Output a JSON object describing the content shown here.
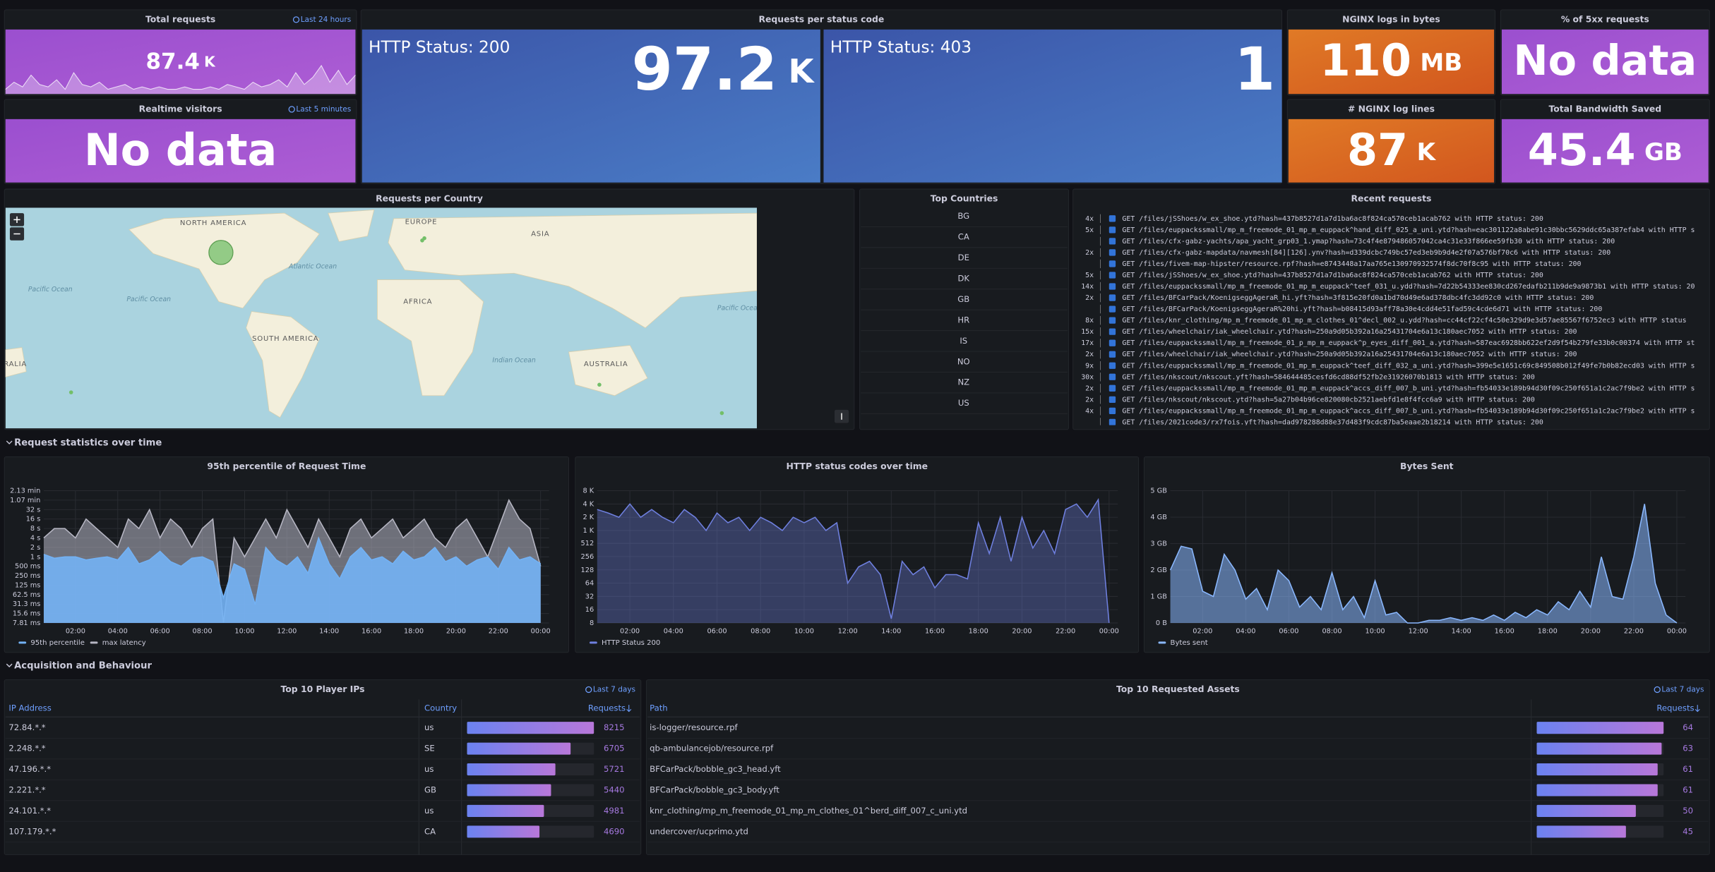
{
  "stats": [
    {
      "title": "Total requests",
      "value": 87.4,
      "unit": "K",
      "badge": "Last 24 hours",
      "sparkline": [
        2,
        5,
        3,
        8,
        4,
        3,
        6,
        2,
        9,
        4,
        3,
        5,
        2,
        3,
        4,
        2,
        3,
        2,
        3,
        2,
        2,
        3,
        2,
        2,
        3,
        2,
        4,
        3,
        2,
        5,
        3,
        4,
        6,
        3,
        9,
        4,
        7,
        12,
        5,
        10,
        4,
        8
      ]
    },
    {
      "title": "Realtime visitors",
      "value": "No data",
      "badge": "Last 5 minutes"
    },
    {
      "title": "NGINX logs in bytes",
      "value": 110,
      "unit": "MB"
    },
    {
      "title": "% of 5xx requests",
      "value": "No data"
    },
    {
      "title": "# NGINX log lines",
      "value": 87,
      "unit": "K"
    },
    {
      "title": "Total Bandwidth Saved",
      "value": 45.4,
      "unit": "GB"
    }
  ],
  "status_panel": {
    "title": "Requests per status code",
    "tiles": [
      {
        "label": "HTTP Status: 200",
        "value": 97.2,
        "unit": "K"
      },
      {
        "label": "HTTP Status: 403",
        "value": 1
      }
    ]
  },
  "map_panel": {
    "title": "Requests per Country",
    "labels": [
      "NORTH AMERICA",
      "EUROPE",
      "ASIA",
      "AFRICA",
      "SOUTH AMERICA",
      "AUSTRALIA",
      "Pacific Ocean",
      "Pacific Ocean",
      "Atlantic Ocean",
      "Indian Ocean",
      "Pacific Ocean",
      "RALIA"
    ]
  },
  "top_countries": {
    "title": "Top Countries",
    "items": [
      "BG",
      "CA",
      "DE",
      "DK",
      "GB",
      "HR",
      "IS",
      "NO",
      "NZ",
      "US"
    ]
  },
  "recent_requests": {
    "title": "Recent requests",
    "lines": [
      {
        "count": "4x",
        "text": "GET /files/jSShoes/w_ex_shoe.ytd?hash=437b8527d1a7d1ba6ac8f824ca570ceb1acab762 with HTTP status: 200"
      },
      {
        "count": "5x",
        "text": "GET /files/euppackssmall/mp_m_freemode_01_mp_m_euppack^hand_diff_025_a_uni.ytd?hash=eac301122a8abe91c30bbc5629ddc65a387efab4 with HTTP s"
      },
      {
        "count": null,
        "text": "GET /files/cfx-gabz-yachts/apa_yacht_grp03_1.ymap?hash=73c4f4e879486057042ca4c31e33f866ee59fb30 with HTTP status: 200"
      },
      {
        "count": "2x",
        "text": "GET /files/cfx-gabz-mapdata/navmesh[84][126].ynv?hash=d339dcbc749bc57ed3eb9b9d4e2f07a576bf70c6 with HTTP status: 200"
      },
      {
        "count": null,
        "text": "GET /files/fivem-map-hipster/resource.rpf?hash=e8743448a17aa765e130970932574f8dc70f8c95 with HTTP status: 200"
      },
      {
        "count": "5x",
        "text": "GET /files/jSShoes/w_ex_shoe.ytd?hash=437b8527d1a7d1ba6ac8f824ca570ceb1acab762 with HTTP status: 200"
      },
      {
        "count": "14x",
        "text": "GET /files/euppackssmall/mp_m_freemode_01_mp_m_euppack^teef_031_u.ydd?hash=7d22b54333ee830cd267edafb211b9de9a9873b1 with HTTP status: 20"
      },
      {
        "count": "2x",
        "text": "GET /files/BFCarPack/KoenigseggAgeraR_hi.yft?hash=3f815e20fd0a1bd70d49e6ad378dbc4fc3dd92c0 with HTTP status: 200"
      },
      {
        "count": null,
        "text": "GET /files/BFCarPack/KoenigseggAgeraR%20hi.yft?hash=b08415d93aff78a30e4cdd4e51fad59c4cde6d71 with HTTP status: 200"
      },
      {
        "count": "8x",
        "text": "GET /files/knr_clothing/mp_m_freemode_01_mp_m_clothes_01^decl_002_u.ydd?hash=cc44cf22cf4c50e329d9e3d57ae85567f6752ec3 with HTTP status"
      },
      {
        "count": "15x",
        "text": "GET /files/wheelchair/iak_wheelchair.ytd?hash=250a9d05b392a16a25431704e6a13c180aec7052 with HTTP status: 200"
      },
      {
        "count": "17x",
        "text": "GET /files/euppackssmall/mp_m_freemode_01_p_mp_m_euppack^p_eyes_diff_001_a.ytd?hash=587eac6928bb622ef2d9f54b279fe33b0c00374 with HTTP st"
      },
      {
        "count": "2x",
        "text": "GET /files/wheelchair/iak_wheelchair.ytd?hash=250a9d05b392a16a25431704e6a13c180aec7052 with HTTP status: 200"
      },
      {
        "count": "9x",
        "text": "GET /files/euppackssmall/mp_m_freemode_01_mp_m_euppack^teef_diff_032_a_uni.ytd?hash=399e5e1651c69c849508b012f49fe7b0b82ecd03 with HTTP s"
      },
      {
        "count": "30x",
        "text": "GET /files/nkscout/nkscout.yft?hash=584644485cesfd6cd88df52fb2e31926070b1813 with HTTP status: 200"
      },
      {
        "count": "2x",
        "text": "GET /files/euppackssmall/mp_m_freemode_01_mp_m_euppack^accs_diff_007_b_uni.ytd?hash=fb54033e189b94d30f09c250f651a1c2ac7f9be2 with HTTP s"
      },
      {
        "count": "2x",
        "text": "GET /files/nkscout/nkscout.ytd?hash=5a27b04b96ce820080cb2521aebfd1e8f4fcc6a9 with HTTP status: 200"
      },
      {
        "count": "4x",
        "text": "GET /files/euppackssmall/mp_m_freemode_01_mp_m_euppack^accs_diff_007_b_uni.ytd?hash=fb54033e189b94d30f09c250f651a1c2ac7f9be2 with HTTP s"
      },
      {
        "count": null,
        "text": "GET /files/2021code3/rx7fois.yft?hash=dad978288d88e37d483f9cdc87ba5eaae2b18214 with HTTP status: 200"
      }
    ]
  },
  "rows": [
    "Request statistics over time",
    "Acquisition and Behaviour"
  ],
  "chart_data": [
    {
      "type": "area",
      "title": "95th percentile of Request Time",
      "log_y": true,
      "grid": true,
      "x": [
        0.5,
        1,
        1.5,
        2,
        2.5,
        3,
        3.5,
        4,
        4.5,
        5,
        5.5,
        6,
        6.5,
        7,
        7.5,
        8,
        8.5,
        9,
        9.5,
        10,
        10.5,
        11,
        11.5,
        12,
        12.5,
        13,
        13.5,
        14,
        14.5,
        15,
        15.5,
        16,
        16.5,
        17,
        17.5,
        18,
        18.5,
        19,
        19.5,
        20,
        20.5,
        21,
        21.5,
        22,
        22.5,
        23,
        23.5,
        24
      ],
      "xlim": [
        0.5,
        24.4
      ],
      "xticks": [
        {
          "value": 2,
          "label": "02:00"
        },
        {
          "value": 4,
          "label": "04:00"
        },
        {
          "value": 6,
          "label": "06:00"
        },
        {
          "value": 8,
          "label": "08:00"
        },
        {
          "value": 10,
          "label": "10:00"
        },
        {
          "value": 12,
          "label": "12:00"
        },
        {
          "value": 14,
          "label": "14:00"
        },
        {
          "value": 16,
          "label": "16:00"
        },
        {
          "value": 18,
          "label": "18:00"
        },
        {
          "value": 20,
          "label": "20:00"
        },
        {
          "value": 22,
          "label": "22:00"
        },
        {
          "value": 24,
          "label": "00:00"
        }
      ],
      "ylim": [
        0.00781,
        128
      ],
      "yticks": [
        {
          "value": 0.00781,
          "label": "7.81 ms"
        },
        {
          "value": 0.0156,
          "label": "15.6 ms"
        },
        {
          "value": 0.0313,
          "label": "31.3 ms"
        },
        {
          "value": 0.0625,
          "label": "62.5 ms"
        },
        {
          "value": 0.125,
          "label": "125 ms"
        },
        {
          "value": 0.25,
          "label": "250 ms"
        },
        {
          "value": 0.5,
          "label": "500 ms"
        },
        {
          "value": 1,
          "label": "1 s"
        },
        {
          "value": 2,
          "label": "2 s"
        },
        {
          "value": 4,
          "label": "4 s"
        },
        {
          "value": 8,
          "label": "8 s"
        },
        {
          "value": 16,
          "label": "16 s"
        },
        {
          "value": 32,
          "label": "32 s"
        },
        {
          "value": 64,
          "label": "1.07 min"
        },
        {
          "value": 128,
          "label": "2.13 min"
        }
      ],
      "series": [
        {
          "name": "95th percentile",
          "color": "#73b2f5",
          "values": [
            1.2,
            0.9,
            1,
            1,
            0.8,
            0.9,
            1,
            0.8,
            2,
            0.6,
            0.8,
            1.5,
            0.7,
            0.5,
            0.9,
            1,
            0.7,
            0.05,
            0.6,
            0.4,
            0.03,
            2,
            0.8,
            0.5,
            1,
            0.3,
            4,
            0.6,
            0.2,
            1,
            2,
            0.8,
            1,
            0.6,
            1.5,
            0.8,
            1,
            2,
            0.7,
            1,
            0.5,
            0.8,
            1,
            0.4,
            2,
            0.8,
            1,
            0.6
          ]
        },
        {
          "name": "max latency",
          "color": "#b7b7c4",
          "values": [
            4,
            8,
            8,
            4,
            16,
            8,
            4,
            2,
            16,
            8,
            32,
            4,
            16,
            8,
            2,
            8,
            16,
            0.008,
            4,
            1,
            4,
            16,
            4,
            32,
            8,
            2,
            16,
            4,
            1,
            8,
            16,
            4,
            8,
            16,
            4,
            8,
            16,
            4,
            2,
            8,
            16,
            4,
            1,
            8,
            64,
            16,
            8,
            0.5
          ]
        }
      ]
    },
    {
      "type": "area",
      "title": "HTTP status codes over time",
      "log_y": true,
      "grid": true,
      "x": [
        0.5,
        1,
        1.5,
        2,
        2.5,
        3,
        3.5,
        4,
        4.5,
        5,
        5.5,
        6,
        6.5,
        7,
        7.5,
        8,
        8.5,
        9,
        9.5,
        10,
        10.5,
        11,
        11.5,
        12,
        12.5,
        13,
        13.5,
        14,
        14.5,
        15,
        15.5,
        16,
        16.5,
        17,
        17.5,
        18,
        18.5,
        19,
        19.5,
        20,
        20.5,
        21,
        21.5,
        22,
        22.5,
        23,
        23.5,
        24
      ],
      "xlim": [
        0.5,
        24.4
      ],
      "xticks": [
        {
          "value": 2,
          "label": "02:00"
        },
        {
          "value": 4,
          "label": "04:00"
        },
        {
          "value": 6,
          "label": "06:00"
        },
        {
          "value": 8,
          "label": "08:00"
        },
        {
          "value": 10,
          "label": "10:00"
        },
        {
          "value": 12,
          "label": "12:00"
        },
        {
          "value": 14,
          "label": "14:00"
        },
        {
          "value": 16,
          "label": "16:00"
        },
        {
          "value": 18,
          "label": "18:00"
        },
        {
          "value": 20,
          "label": "20:00"
        },
        {
          "value": 22,
          "label": "22:00"
        },
        {
          "value": 24,
          "label": "00:00"
        }
      ],
      "ylim": [
        8,
        8000
      ],
      "yticks": [
        8,
        16,
        32,
        64,
        128,
        256,
        512,
        {
          "value": 1000,
          "label": "1 K"
        },
        {
          "value": 2000,
          "label": "2 K"
        },
        {
          "value": 4000,
          "label": "4 K"
        },
        {
          "value": 8000,
          "label": "8 K"
        }
      ],
      "series": [
        {
          "name": "HTTP Status 200",
          "color": "#6f80e0",
          "values": [
            3000,
            2500,
            2000,
            4000,
            2000,
            3000,
            2000,
            1500,
            3000,
            2000,
            1000,
            2500,
            1500,
            2000,
            1000,
            2000,
            1500,
            1000,
            2000,
            1500,
            2000,
            1000,
            1500,
            64,
            150,
            200,
            100,
            10,
            200,
            100,
            150,
            50,
            100,
            100,
            80,
            1500,
            300,
            2000,
            200,
            2000,
            400,
            1000,
            300,
            3000,
            4000,
            2000,
            5000,
            8
          ]
        }
      ]
    },
    {
      "type": "area",
      "title": "Bytes Sent",
      "log_y": false,
      "grid": true,
      "x": [
        0.5,
        1,
        1.5,
        2,
        2.5,
        3,
        3.5,
        4,
        4.5,
        5,
        5.5,
        6,
        6.5,
        7,
        7.5,
        8,
        8.5,
        9,
        9.5,
        10,
        10.5,
        11,
        11.5,
        12,
        12.5,
        13,
        13.5,
        14,
        14.5,
        15,
        15.5,
        16,
        16.5,
        17,
        17.5,
        18,
        18.5,
        19,
        19.5,
        20,
        20.5,
        21,
        21.5,
        22,
        22.5,
        23,
        23.5,
        24
      ],
      "xlim": [
        0.5,
        24.4
      ],
      "xticks": [
        {
          "value": 2,
          "label": "02:00"
        },
        {
          "value": 4,
          "label": "04:00"
        },
        {
          "value": 6,
          "label": "06:00"
        },
        {
          "value": 8,
          "label": "08:00"
        },
        {
          "value": 10,
          "label": "10:00"
        },
        {
          "value": 12,
          "label": "12:00"
        },
        {
          "value": 14,
          "label": "14:00"
        },
        {
          "value": 16,
          "label": "16:00"
        },
        {
          "value": 18,
          "label": "18:00"
        },
        {
          "value": 20,
          "label": "20:00"
        },
        {
          "value": 22,
          "label": "22:00"
        },
        {
          "value": 24,
          "label": "00:00"
        }
      ],
      "ylim": [
        0,
        5
      ],
      "yticks": [
        {
          "value": 0,
          "label": "0 B"
        },
        {
          "value": 1,
          "label": "1 GB"
        },
        {
          "value": 2,
          "label": "2 GB"
        },
        {
          "value": 3,
          "label": "3 GB"
        },
        {
          "value": 4,
          "label": "4 GB"
        },
        {
          "value": 5,
          "label": "5 GB"
        }
      ],
      "series": [
        {
          "name": "Bytes sent",
          "color": "#8ab8ff",
          "values": [
            2.0,
            2.9,
            2.8,
            1.2,
            1.0,
            2.6,
            2.0,
            0.9,
            1.3,
            0.5,
            2.0,
            1.6,
            0.6,
            1.0,
            0.5,
            1.9,
            0.5,
            1.0,
            0.2,
            1.6,
            0.3,
            0.4,
            0,
            0,
            0.1,
            0.1,
            0.2,
            0.1,
            0.2,
            0.1,
            0.3,
            0.1,
            0.4,
            0.2,
            0.5,
            0.3,
            0.8,
            0.5,
            1.2,
            0.6,
            2.5,
            1.0,
            0.9,
            2.5,
            4.5,
            1.5,
            0.3,
            0
          ]
        }
      ]
    }
  ],
  "ip_table": {
    "title": "Top 10 Player IPs",
    "badge": "Last 7 days",
    "columns": [
      "IP Address",
      "Country",
      "Requests"
    ],
    "rows": [
      [
        "72.84.*.*",
        "us",
        8215
      ],
      [
        "2.248.*.*",
        "SE",
        6705
      ],
      [
        "47.196.*.*",
        "us",
        5721
      ],
      [
        "2.221.*.*",
        "GB",
        5440
      ],
      [
        "24.101.*.*",
        "us",
        4981
      ],
      [
        "107.179.*.*",
        "CA",
        4690
      ]
    ]
  },
  "asset_table": {
    "title": "Top 10 Requested Assets",
    "badge": "Last 7 days",
    "columns": [
      "Path",
      "Requests"
    ],
    "rows": [
      [
        "is-logger/resource.rpf",
        64
      ],
      [
        "qb-ambulancejob/resource.rpf",
        63
      ],
      [
        "BFCarPack/bobble_gc3_head.yft",
        61
      ],
      [
        "BFCarPack/bobble_gc3_body.yft",
        61
      ],
      [
        "knr_clothing/mp_m_freemode_01_mp_m_clothes_01^berd_diff_007_c_uni.ytd",
        50
      ],
      [
        "undercover/ucprimo.ytd",
        45
      ]
    ]
  }
}
